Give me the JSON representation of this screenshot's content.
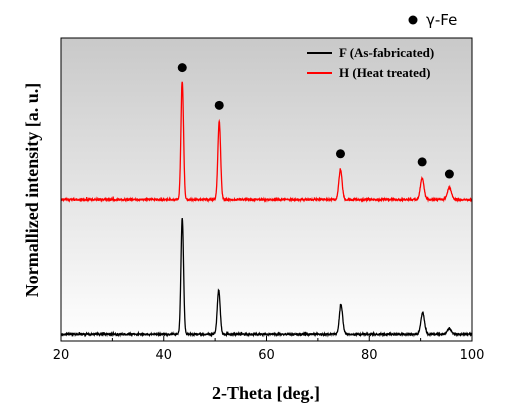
{
  "chart_data": {
    "type": "line",
    "title": "",
    "xlabel": "2-Theta [deg.]",
    "ylabel": "Normallized intensity [a. u.]",
    "xlim": [
      20,
      100
    ],
    "xticks": [
      "20",
      "40",
      "60",
      "80",
      "100"
    ],
    "y_ticks_shown": false,
    "background": "gray gradient (light at bottom, darker at top)",
    "grid": false,
    "legend": "top-right",
    "series": [
      {
        "name": "F (As-fabricated)",
        "color": "#000000",
        "baseline": 0.0,
        "noise": 0.006,
        "peaks": [
          {
            "x": 43.6,
            "height": 0.86,
            "width": 0.25
          },
          {
            "x": 50.7,
            "height": 0.33,
            "width": 0.28
          },
          {
            "x": 74.5,
            "height": 0.22,
            "width": 0.32
          },
          {
            "x": 90.4,
            "height": 0.16,
            "width": 0.35
          },
          {
            "x": 95.6,
            "height": 0.04,
            "width": 0.4
          }
        ]
      },
      {
        "name": "H (Heat treated)",
        "color": "#ff0000",
        "baseline": 1.0,
        "noise": 0.006,
        "peaks": [
          {
            "x": 43.6,
            "height": 0.88,
            "width": 0.25
          },
          {
            "x": 50.8,
            "height": 0.58,
            "width": 0.27
          },
          {
            "x": 74.4,
            "height": 0.22,
            "width": 0.32
          },
          {
            "x": 90.3,
            "height": 0.16,
            "width": 0.35
          },
          {
            "x": 95.6,
            "height": 0.09,
            "width": 0.4
          }
        ]
      }
    ],
    "markers": [
      {
        "x": 43.6,
        "y": 1.98
      },
      {
        "x": 50.8,
        "y": 1.7
      },
      {
        "x": 74.4,
        "y": 1.34
      },
      {
        "x": 90.3,
        "y": 1.28
      },
      {
        "x": 95.6,
        "y": 1.19
      }
    ],
    "marker_legend": {
      "label": "γ-Fe"
    }
  }
}
